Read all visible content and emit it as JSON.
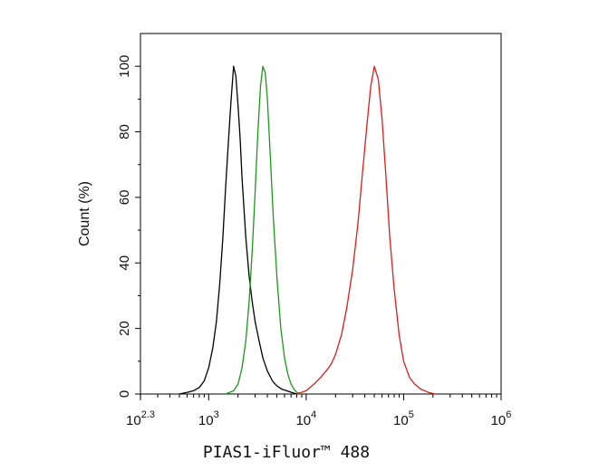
{
  "chart_data": {
    "type": "line",
    "title": "",
    "xlabel": "PIAS1-iFluor™ 488",
    "ylabel": "Count (%)",
    "x_scale": "log10",
    "xlim": [
      199.5,
      1000000
    ],
    "ylim": [
      0,
      110
    ],
    "grid": false,
    "legend": "none",
    "x_ticks": [
      {
        "value": 199.5,
        "base": "10",
        "exp": "2.3"
      },
      {
        "value": 1000,
        "base": "10",
        "exp": "3"
      },
      {
        "value": 10000,
        "base": "10",
        "exp": "4"
      },
      {
        "value": 100000,
        "base": "10",
        "exp": "5"
      },
      {
        "value": 1000000,
        "base": "10",
        "exp": "6"
      }
    ],
    "y_ticks": [
      {
        "value": 0,
        "label": "0"
      },
      {
        "value": 20,
        "label": "20"
      },
      {
        "value": 40,
        "label": "40"
      },
      {
        "value": 60,
        "label": "60"
      },
      {
        "value": 80,
        "label": "80"
      },
      {
        "value": 100,
        "label": "100"
      }
    ],
    "series": [
      {
        "color": "#000000",
        "x": [
          500,
          600,
          700,
          800,
          900,
          1000,
          1100,
          1200,
          1300,
          1400,
          1500,
          1600,
          1700,
          1800,
          1900,
          2000,
          2100,
          2200,
          2400,
          2600,
          2800,
          3000,
          3300,
          3600,
          4000,
          4500,
          5000,
          5600,
          6300,
          7100,
          8000
        ],
        "y": [
          0,
          0.5,
          1,
          2,
          4,
          8,
          14,
          22,
          34,
          48,
          64,
          78,
          90,
          100,
          97,
          88,
          78,
          66,
          48,
          36,
          28,
          22,
          16,
          11,
          7,
          4,
          2.5,
          1.5,
          1,
          0.5,
          0
        ]
      },
      {
        "color": "#1a9a1a",
        "x": [
          1500,
          1800,
          2000,
          2200,
          2400,
          2600,
          2800,
          3000,
          3200,
          3400,
          3600,
          3800,
          4000,
          4300,
          4600,
          5000,
          5500,
          6000,
          6500,
          7000,
          7500,
          8000,
          9000
        ],
        "y": [
          0,
          1,
          3,
          8,
          16,
          28,
          44,
          62,
          80,
          94,
          100,
          98,
          90,
          72,
          54,
          36,
          20,
          11,
          6,
          3,
          1.5,
          0.5,
          0
        ]
      },
      {
        "color": "#e31a1a",
        "x": [
          8000,
          10000,
          12000,
          14000,
          16000,
          18000,
          20000,
          23000,
          26000,
          30000,
          34000,
          38000,
          42000,
          46000,
          50000,
          55000,
          60000,
          66000,
          72000,
          80000,
          90000,
          100000,
          115000,
          130000,
          150000,
          180000,
          210000
        ],
        "y": [
          0,
          1,
          3,
          5,
          7,
          9,
          12,
          18,
          26,
          38,
          52,
          68,
          82,
          94,
          100,
          96,
          84,
          66,
          48,
          32,
          18,
          10,
          5,
          3,
          1.5,
          0.5,
          0
        ]
      }
    ]
  }
}
